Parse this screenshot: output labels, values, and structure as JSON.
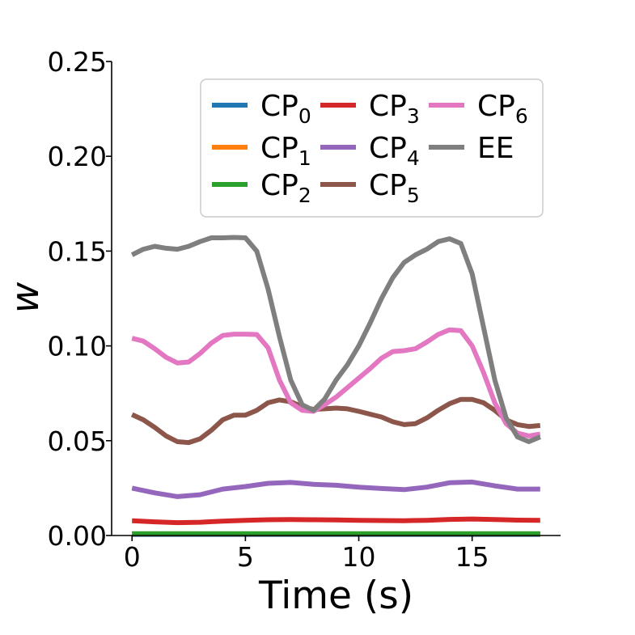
{
  "chart_data": {
    "type": "line",
    "title": "",
    "xlabel": "Time (s)",
    "ylabel": "w",
    "xlim": [
      -0.9,
      18.9
    ],
    "ylim": [
      0.0,
      0.25
    ],
    "xticks": [
      0,
      5,
      10,
      15
    ],
    "xtick_labels": [
      "0",
      "5",
      "10",
      "15"
    ],
    "yticks": [
      0.0,
      0.05,
      0.1,
      0.15,
      0.2,
      0.25
    ],
    "ytick_labels": [
      "0.00",
      "0.05",
      "0.10",
      "0.15",
      "0.20",
      "0.25"
    ],
    "grid": false,
    "legend_position": "top-right",
    "legend_columns": 3,
    "series": [
      {
        "name": "CP",
        "subscript": "0",
        "color": "#1f77b4",
        "x": [
          0,
          18
        ],
        "y": [
          0.0005,
          0.0005
        ]
      },
      {
        "name": "CP",
        "subscript": "1",
        "color": "#ff7f0e",
        "x": [
          0,
          18
        ],
        "y": [
          0.0008,
          0.0008
        ]
      },
      {
        "name": "CP",
        "subscript": "2",
        "color": "#2ca02c",
        "x": [
          0,
          18
        ],
        "y": [
          0.001,
          0.001
        ]
      },
      {
        "name": "CP",
        "subscript": "3",
        "color": "#d62728",
        "x": [
          0,
          1,
          2,
          3,
          4,
          5,
          6,
          7,
          8,
          9,
          10,
          11,
          12,
          13,
          14,
          15,
          16,
          17,
          18
        ],
        "y": [
          0.0078,
          0.0072,
          0.0068,
          0.007,
          0.0076,
          0.008,
          0.0083,
          0.0084,
          0.0083,
          0.0082,
          0.008,
          0.0079,
          0.0078,
          0.008,
          0.0085,
          0.0087,
          0.0084,
          0.0081,
          0.008
        ]
      },
      {
        "name": "CP",
        "subscript": "4",
        "color": "#9467bd",
        "x": [
          0,
          1,
          2,
          3,
          4,
          5,
          6,
          7,
          8,
          9,
          10,
          11,
          12,
          13,
          14,
          15,
          16,
          17,
          18
        ],
        "y": [
          0.025,
          0.0225,
          0.0205,
          0.0215,
          0.0245,
          0.0258,
          0.0275,
          0.028,
          0.027,
          0.0265,
          0.0255,
          0.0248,
          0.0242,
          0.0255,
          0.0278,
          0.0282,
          0.0262,
          0.0245,
          0.0245
        ]
      },
      {
        "name": "CP",
        "subscript": "5",
        "color": "#8c564b",
        "x": [
          0,
          0.5,
          1,
          1.5,
          2,
          2.5,
          3,
          3.5,
          4,
          4.5,
          5,
          5.5,
          6,
          6.5,
          7,
          7.5,
          8,
          8.5,
          9,
          9.5,
          10,
          10.5,
          11,
          11.5,
          12,
          12.5,
          13,
          13.5,
          14,
          14.5,
          15,
          15.5,
          16,
          16.5,
          17,
          17.5,
          18
        ],
        "y": [
          0.0638,
          0.061,
          0.057,
          0.0525,
          0.0495,
          0.049,
          0.051,
          0.0555,
          0.061,
          0.0635,
          0.0635,
          0.066,
          0.07,
          0.0715,
          0.0705,
          0.068,
          0.0665,
          0.0668,
          0.0672,
          0.0668,
          0.0655,
          0.064,
          0.0625,
          0.06,
          0.0585,
          0.059,
          0.062,
          0.066,
          0.0695,
          0.0718,
          0.0718,
          0.07,
          0.066,
          0.061,
          0.0585,
          0.0575,
          0.058
        ]
      },
      {
        "name": "CP",
        "subscript": "6",
        "color": "#e377c2",
        "x": [
          0,
          0.5,
          1,
          1.5,
          2,
          2.5,
          3,
          3.5,
          4,
          4.5,
          5,
          5.5,
          6,
          6.5,
          7,
          7.5,
          8,
          8.5,
          9,
          9.5,
          10,
          10.5,
          11,
          11.5,
          12,
          12.5,
          13,
          13.5,
          14,
          14.5,
          15,
          15.5,
          16,
          16.5,
          17,
          17.5,
          18
        ],
        "y": [
          0.104,
          0.1025,
          0.0985,
          0.094,
          0.091,
          0.0915,
          0.096,
          0.1015,
          0.1055,
          0.1062,
          0.1062,
          0.106,
          0.099,
          0.082,
          0.07,
          0.066,
          0.0655,
          0.069,
          0.073,
          0.078,
          0.083,
          0.088,
          0.0935,
          0.097,
          0.0975,
          0.0985,
          0.102,
          0.106,
          0.1085,
          0.108,
          0.1,
          0.086,
          0.07,
          0.059,
          0.054,
          0.0525,
          0.0535
        ]
      },
      {
        "name": "EE",
        "subscript": "",
        "color": "#7f7f7f",
        "x": [
          0,
          0.5,
          1,
          1.5,
          2,
          2.5,
          3,
          3.5,
          4,
          4.5,
          5,
          5.5,
          6,
          6.5,
          7,
          7.5,
          8,
          8.5,
          9,
          9.5,
          10,
          10.5,
          11,
          11.5,
          12,
          12.5,
          13,
          13.5,
          14,
          14.5,
          15,
          15.5,
          16,
          16.5,
          17,
          17.5,
          18
        ],
        "y": [
          0.148,
          0.151,
          0.1525,
          0.1515,
          0.151,
          0.1525,
          0.155,
          0.157,
          0.157,
          0.1572,
          0.157,
          0.15,
          0.13,
          0.105,
          0.082,
          0.069,
          0.066,
          0.072,
          0.082,
          0.09,
          0.1,
          0.112,
          0.125,
          0.136,
          0.144,
          0.148,
          0.151,
          0.155,
          0.1565,
          0.154,
          0.138,
          0.11,
          0.082,
          0.062,
          0.052,
          0.0495,
          0.052
        ]
      }
    ]
  }
}
